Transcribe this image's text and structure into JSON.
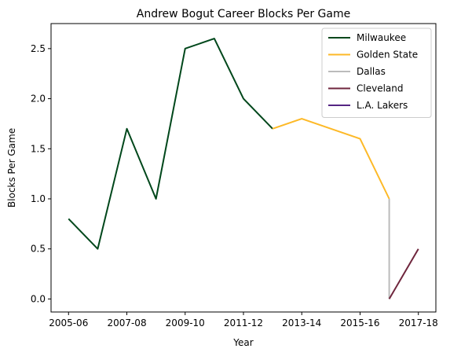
{
  "chart_data": {
    "type": "line",
    "title": "Andrew Bogut Career Blocks Per Game",
    "xlabel": "Year",
    "ylabel": "Blocks Per Game",
    "x_ticks": [
      "2005-06",
      "2007-08",
      "2009-10",
      "2011-12",
      "2013-14",
      "2015-16",
      "2017-18"
    ],
    "y_ticks": [
      "0.0",
      "0.5",
      "1.0",
      "1.5",
      "2.0",
      "2.5"
    ],
    "ylim": [
      -0.13,
      2.75
    ],
    "legend_position": "top-right",
    "grid": false,
    "series": [
      {
        "name": "Milwaukee",
        "color": "#00471B",
        "x": [
          "2005-06",
          "2006-07",
          "2007-08",
          "2008-09",
          "2009-10",
          "2010-11",
          "2011-12",
          "2012-13"
        ],
        "values": [
          0.8,
          0.5,
          1.7,
          1.0,
          2.5,
          2.6,
          2.0,
          1.7
        ]
      },
      {
        "name": "Golden State",
        "color": "#FDB927",
        "x": [
          "2012-13",
          "2013-14",
          "2014-15",
          "2015-16",
          "2016-17"
        ],
        "values": [
          1.7,
          1.8,
          1.7,
          1.6,
          1.0
        ]
      },
      {
        "name": "Dallas",
        "color": "#BBBBBB",
        "x": [
          "2016-17",
          "2016-17"
        ],
        "values": [
          1.0,
          0.0
        ]
      },
      {
        "name": "Cleveland",
        "color": "#6F263D",
        "x": [
          "2016-17",
          "2017-18"
        ],
        "values": [
          0.0,
          0.5
        ]
      },
      {
        "name": "L.A. Lakers",
        "color": "#552583",
        "x": [],
        "values": []
      }
    ]
  }
}
